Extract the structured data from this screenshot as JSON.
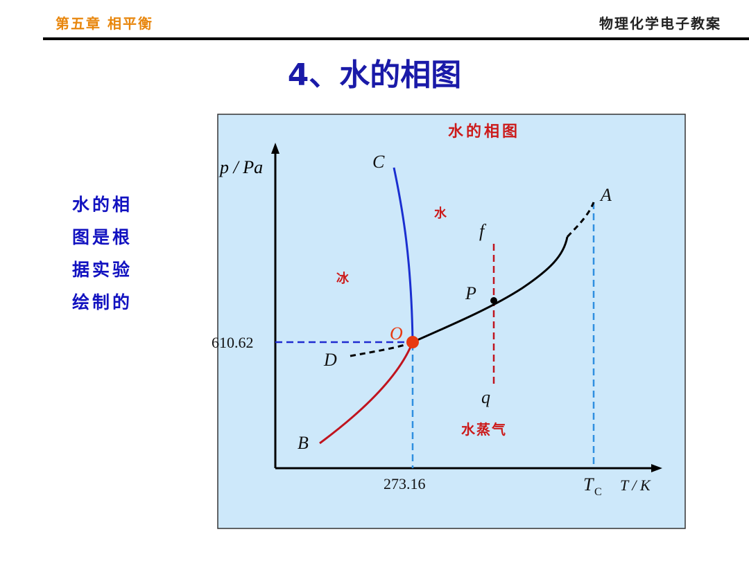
{
  "header": {
    "chapter": "第五章 相平衡",
    "course": "物理化学电子教案"
  },
  "slide": {
    "title": "4、水的相图",
    "side_text_lines": [
      "水的相",
      "图是根",
      "据实验",
      "绘制的"
    ]
  },
  "diagram": {
    "inner_title": "水的相图",
    "y_axis_label": "p / Pa",
    "x_axis_label": "T / K",
    "y_tick": "610.62",
    "x_tick": "273.16",
    "critical_label_main": "T",
    "critical_label_sub": "C",
    "regions": {
      "ice": "冰",
      "water": "水",
      "vapor": "水蒸气"
    },
    "points": {
      "A": "A",
      "B": "B",
      "C": "C",
      "D": "D",
      "O": "O",
      "P": "P",
      "f": "f",
      "q": "q"
    },
    "colors": {
      "background": "#cde8fa",
      "fusion_curve": "#1a2fd0",
      "sublimation_curve": "#c0141e",
      "vaporization_curve": "#000000",
      "guide_lines": "#2f8fe0",
      "isotherm": "#c0141e",
      "triple_point": "#e83a12",
      "title_blue": "#1a1aa8",
      "header_orange": "#e8860c"
    }
  }
}
